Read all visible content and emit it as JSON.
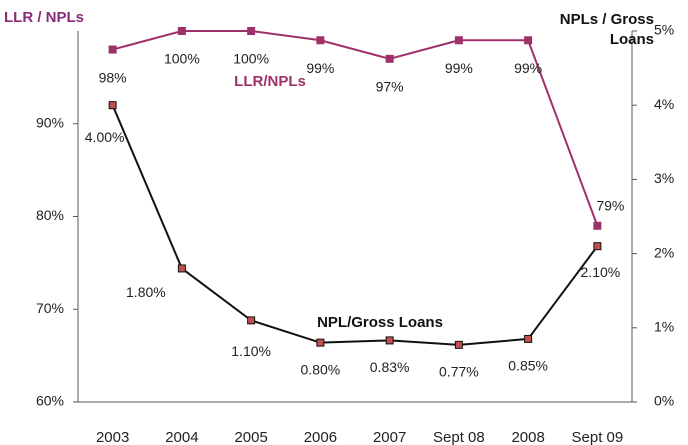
{
  "chart_data": {
    "type": "line",
    "y_label": "LLR / NPLs",
    "y2_label": "NPLs / Gross Loans",
    "categories": [
      "2003",
      "2004",
      "2005",
      "2006",
      "2007",
      "Sept 08",
      "2008",
      "Sept 09"
    ],
    "series": [
      {
        "name": "LLR/NPLs",
        "color": "#a0306a",
        "values": [
          98,
          100,
          100,
          99,
          97,
          99,
          99,
          79
        ],
        "value_labels": [
          "98%",
          "100%",
          "100%",
          "99%",
          "97%",
          "99%",
          "99%",
          "79%"
        ]
      },
      {
        "name": "NPL/Gross Loans",
        "color": "#111111",
        "marker_color": "#c0504d",
        "axis": "y2",
        "values": [
          4.0,
          1.8,
          1.1,
          0.8,
          0.83,
          0.77,
          0.85,
          2.1
        ],
        "value_labels": [
          "4.00%",
          "1.80%",
          "1.10%",
          "0.80%",
          "0.83%",
          "0.77%",
          "0.85%",
          "2.10%"
        ]
      }
    ],
    "ylim": [
      60,
      100
    ],
    "yticks": [
      {
        "value": 60,
        "label": "60%"
      },
      {
        "value": 70,
        "label": "70%"
      },
      {
        "value": 80,
        "label": "80%"
      },
      {
        "value": 90,
        "label": "90%"
      }
    ],
    "y2lim": [
      0,
      5
    ],
    "y2ticks": [
      {
        "value": 0,
        "label": "0%"
      },
      {
        "value": 1,
        "label": "1%"
      },
      {
        "value": 2,
        "label": "2%"
      },
      {
        "value": 3,
        "label": "3%"
      },
      {
        "value": 4,
        "label": "4%"
      },
      {
        "value": 5,
        "label": "5%"
      }
    ]
  }
}
